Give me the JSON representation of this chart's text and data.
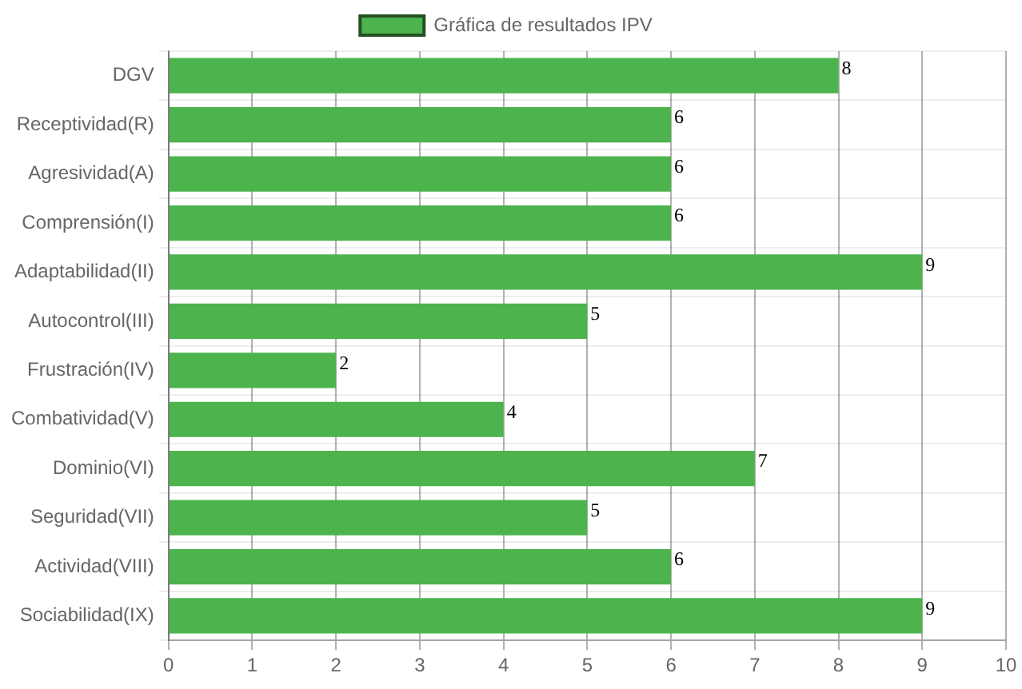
{
  "chart_data": {
    "type": "bar",
    "orientation": "horizontal",
    "categories": [
      "DGV",
      "Receptividad(R)",
      "Agresividad(A)",
      "Comprensión(I)",
      "Adaptabilidad(II)",
      "Autocontrol(III)",
      "Frustración(IV)",
      "Combatividad(V)",
      "Dominio(VI)",
      "Seguridad(VII)",
      "Actividad(VIII)",
      "Sociabilidad(IX)"
    ],
    "series": [
      {
        "name": "Gráfica de resultados IPV",
        "color": "#4db34d",
        "values": [
          8,
          6,
          6,
          6,
          9,
          5,
          2,
          4,
          7,
          5,
          6,
          9
        ]
      }
    ],
    "xlim": [
      0,
      10
    ],
    "xticks": [
      0,
      1,
      2,
      3,
      4,
      5,
      6,
      7,
      8,
      9,
      10
    ],
    "grid": true,
    "legend": "top",
    "data_labels": true
  }
}
